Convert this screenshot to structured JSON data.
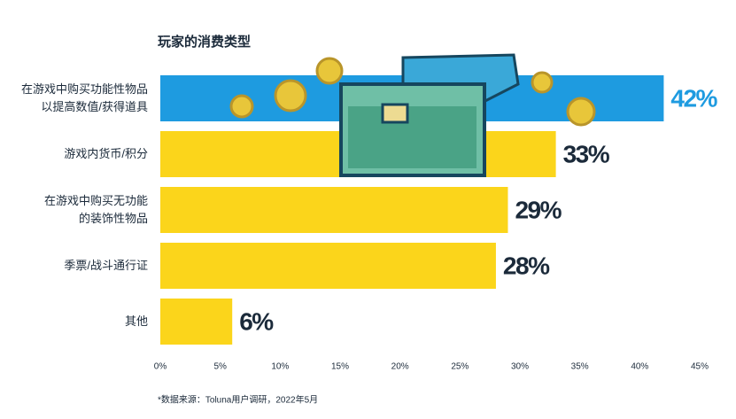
{
  "chart_data": {
    "type": "barh",
    "title": "玩家的消费类型",
    "categories": [
      "在游戏中购买功能性物品\n以提高数值/获得道具",
      "游戏内货币/积分",
      "在游戏中购买无功能\n的装饰性物品",
      "季票/战斗通行证",
      "其他"
    ],
    "values": [
      42,
      33,
      29,
      28,
      6
    ],
    "value_labels": [
      "42%",
      "33%",
      "29%",
      "28%",
      "6%"
    ],
    "colors": [
      "#1e9be0",
      "#fbd51b",
      "#fbd51b",
      "#fbd51b",
      "#fbd51b"
    ],
    "label_colors": [
      "#1e9be0",
      "#1b2a3a",
      "#1b2a3a",
      "#1b2a3a",
      "#1b2a3a"
    ],
    "xlim": [
      0,
      45
    ],
    "xticks": [
      {
        "value": 0,
        "label": "0%"
      },
      {
        "value": 5,
        "label": "5%"
      },
      {
        "value": 10,
        "label": "10%"
      },
      {
        "value": 15,
        "label": "15%"
      },
      {
        "value": 20,
        "label": "20%"
      },
      {
        "value": 25,
        "label": "25%"
      },
      {
        "value": 30,
        "label": "30%"
      },
      {
        "value": 35,
        "label": "35%"
      },
      {
        "value": 40,
        "label": "40%"
      },
      {
        "value": 45,
        "label": "45%"
      }
    ],
    "source": "*数据来源：Toluna用户调研，2022年5月"
  }
}
